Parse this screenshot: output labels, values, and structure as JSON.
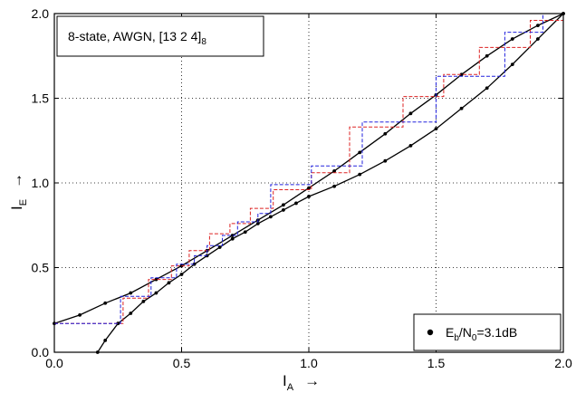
{
  "chart_data": {
    "type": "line",
    "title": "",
    "xlabel": {
      "main": "I",
      "sub": "A",
      "arrow": "→"
    },
    "ylabel": {
      "main": "I",
      "sub": "E",
      "arrow": "→"
    },
    "xlim": [
      0.0,
      2.0
    ],
    "ylim": [
      0.0,
      2.0
    ],
    "xticks": [
      0.0,
      0.5,
      1.0,
      1.5,
      2.0
    ],
    "xtick_labels": [
      "0.0",
      "0.5",
      "1.0",
      "1.5",
      "2.0"
    ],
    "yticks": [
      0.0,
      0.5,
      1.0,
      1.5,
      2.0
    ],
    "ytick_labels": [
      "0.0",
      "0.5",
      "1.0",
      "1.5",
      "2.0"
    ],
    "grid": true,
    "annotation": {
      "main": "8-state, AWGN, [13 2 4]",
      "sub": "8"
    },
    "legend": {
      "position": "bottom-right",
      "entries": [
        {
          "main": "E",
          "sub1": "b",
          "mid": "/N",
          "sub2": "0",
          "tail": "=3.1dB"
        }
      ]
    },
    "series": [
      {
        "role": "transfer-curve-upper",
        "color": "#000000",
        "style": "solid-with-markers",
        "x": [
          0.0,
          0.1,
          0.2,
          0.3,
          0.4,
          0.5,
          0.6,
          0.7,
          0.8,
          0.9,
          1.0,
          1.1,
          1.2,
          1.3,
          1.4,
          1.5,
          1.6,
          1.7,
          1.8,
          1.9,
          2.0
        ],
        "y": [
          0.17,
          0.22,
          0.29,
          0.35,
          0.43,
          0.51,
          0.6,
          0.69,
          0.78,
          0.87,
          0.97,
          1.07,
          1.18,
          1.29,
          1.41,
          1.52,
          1.64,
          1.75,
          1.85,
          1.93,
          2.0
        ]
      },
      {
        "role": "transfer-curve-lower",
        "color": "#000000",
        "style": "solid-with-markers",
        "x": [
          0.17,
          0.2,
          0.25,
          0.3,
          0.35,
          0.4,
          0.45,
          0.5,
          0.55,
          0.6,
          0.65,
          0.7,
          0.75,
          0.8,
          0.85,
          0.9,
          0.95,
          1.0,
          1.1,
          1.2,
          1.3,
          1.4,
          1.5,
          1.6,
          1.7,
          1.8,
          1.9,
          2.0
        ],
        "y": [
          0.0,
          0.07,
          0.17,
          0.23,
          0.3,
          0.35,
          0.41,
          0.46,
          0.52,
          0.57,
          0.62,
          0.67,
          0.71,
          0.76,
          0.8,
          0.84,
          0.88,
          0.92,
          0.98,
          1.05,
          1.13,
          1.22,
          1.32,
          1.44,
          1.56,
          1.7,
          1.85,
          2.0
        ]
      },
      {
        "role": "trajectory-red",
        "color": "#dd2222",
        "style": "dashed-step",
        "x": [
          0.0,
          0.27,
          0.27,
          0.37,
          0.37,
          0.46,
          0.46,
          0.53,
          0.53,
          0.61,
          0.61,
          0.69,
          0.69,
          0.77,
          0.77,
          0.86,
          0.86,
          1.01,
          1.01,
          1.16,
          1.16,
          1.37,
          1.37,
          1.53,
          1.53,
          1.67,
          1.67,
          1.87,
          1.87,
          2.0
        ],
        "y": [
          0.17,
          0.17,
          0.32,
          0.32,
          0.43,
          0.43,
          0.51,
          0.51,
          0.6,
          0.6,
          0.7,
          0.7,
          0.76,
          0.76,
          0.85,
          0.85,
          0.96,
          0.96,
          1.06,
          1.06,
          1.33,
          1.33,
          1.51,
          1.51,
          1.64,
          1.64,
          1.8,
          1.8,
          1.96,
          1.96
        ]
      },
      {
        "role": "trajectory-blue",
        "color": "#2222dd",
        "style": "dashed-step",
        "x": [
          0.0,
          0.26,
          0.26,
          0.38,
          0.38,
          0.48,
          0.48,
          0.55,
          0.55,
          0.6,
          0.6,
          0.66,
          0.66,
          0.72,
          0.72,
          0.8,
          0.8,
          0.85,
          0.85,
          1.01,
          1.01,
          1.21,
          1.21,
          1.5,
          1.5,
          1.77,
          1.77,
          1.92,
          1.92,
          2.0
        ],
        "y": [
          0.17,
          0.17,
          0.33,
          0.33,
          0.44,
          0.44,
          0.52,
          0.52,
          0.57,
          0.57,
          0.63,
          0.63,
          0.69,
          0.69,
          0.77,
          0.77,
          0.82,
          0.82,
          0.99,
          0.99,
          1.1,
          1.1,
          1.36,
          1.36,
          1.63,
          1.63,
          1.89,
          1.89,
          2.0,
          2.0
        ]
      }
    ]
  }
}
